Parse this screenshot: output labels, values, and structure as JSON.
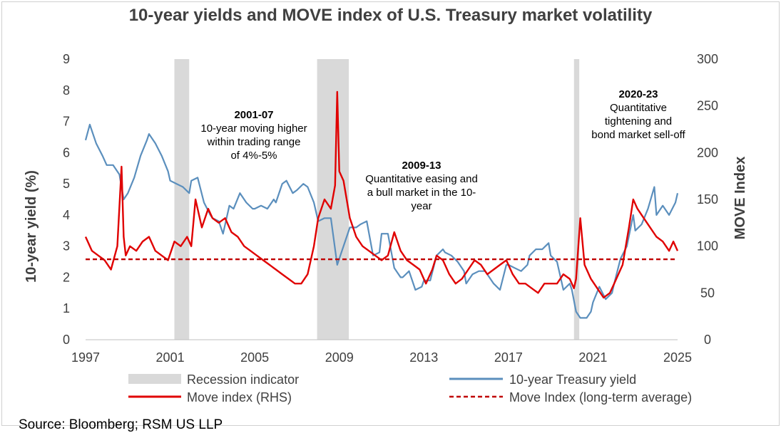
{
  "chart_data": {
    "type": "line",
    "title": "10-year yields and MOVE index of U.S. Treasury market volatility",
    "ylabel_left": "10-year yield (%)",
    "ylabel_right": "MOVE Index",
    "xlim": [
      1997,
      2025
    ],
    "ylim_left": [
      0,
      9
    ],
    "ylim_right": [
      0,
      300
    ],
    "x_ticks": [
      "1997",
      "2001",
      "2005",
      "2009",
      "2013",
      "2017",
      "2021",
      "2025"
    ],
    "y_ticks_left": [
      "0",
      "1",
      "2",
      "3",
      "4",
      "5",
      "6",
      "7",
      "8",
      "9"
    ],
    "y_ticks_right": [
      "0",
      "50",
      "100",
      "150",
      "200",
      "250",
      "300"
    ],
    "recessions": [
      {
        "start": 2001.2,
        "end": 2001.9
      },
      {
        "start": 2007.95,
        "end": 2009.45
      },
      {
        "start": 2020.1,
        "end": 2020.35
      }
    ],
    "series": [
      {
        "name": "10-year Treasury yield",
        "axis": "left",
        "color": "#5b8fbd",
        "x": [
          1997.0,
          1997.2,
          1997.5,
          1997.8,
          1998.0,
          1998.3,
          1998.6,
          1998.8,
          1999.0,
          1999.3,
          1999.6,
          1999.9,
          2000.0,
          2000.3,
          2000.6,
          2000.9,
          2001.0,
          2001.3,
          2001.6,
          2001.9,
          2002.0,
          2002.3,
          2002.6,
          2002.9,
          2003.0,
          2003.3,
          2003.5,
          2003.8,
          2004.0,
          2004.3,
          2004.6,
          2004.9,
          2005.0,
          2005.3,
          2005.6,
          2005.9,
          2006.0,
          2006.3,
          2006.5,
          2006.8,
          2007.0,
          2007.3,
          2007.5,
          2007.8,
          2008.0,
          2008.3,
          2008.6,
          2008.9,
          2009.0,
          2009.3,
          2009.5,
          2009.8,
          2010.0,
          2010.3,
          2010.6,
          2010.9,
          2011.0,
          2011.3,
          2011.6,
          2011.9,
          2012.0,
          2012.3,
          2012.6,
          2012.9,
          2013.0,
          2013.3,
          2013.6,
          2013.9,
          2014.0,
          2014.3,
          2014.6,
          2014.9,
          2015.0,
          2015.3,
          2015.6,
          2015.9,
          2016.0,
          2016.3,
          2016.6,
          2016.9,
          2017.0,
          2017.3,
          2017.6,
          2017.9,
          2018.0,
          2018.3,
          2018.6,
          2018.9,
          2019.0,
          2019.3,
          2019.6,
          2019.9,
          2020.0,
          2020.2,
          2020.4,
          2020.7,
          2020.9,
          2021.0,
          2021.3,
          2021.6,
          2021.9,
          2022.0,
          2022.3,
          2022.6,
          2022.9,
          2023.0,
          2023.3,
          2023.6,
          2023.9,
          2024.0,
          2024.3,
          2024.6,
          2024.9,
          2025.0
        ],
        "values": [
          6.4,
          6.9,
          6.3,
          5.9,
          5.6,
          5.6,
          5.3,
          4.5,
          4.7,
          5.2,
          5.9,
          6.4,
          6.6,
          6.3,
          5.9,
          5.4,
          5.1,
          5.0,
          4.9,
          4.7,
          5.1,
          5.2,
          4.4,
          4.0,
          3.9,
          3.8,
          3.4,
          4.3,
          4.2,
          4.7,
          4.4,
          4.2,
          4.2,
          4.3,
          4.2,
          4.5,
          4.4,
          5.0,
          5.1,
          4.7,
          4.8,
          5.0,
          4.9,
          4.4,
          3.8,
          3.9,
          3.9,
          2.4,
          2.6,
          3.2,
          3.6,
          3.6,
          3.7,
          3.8,
          2.7,
          2.8,
          3.4,
          3.4,
          2.3,
          2.0,
          2.0,
          2.2,
          1.6,
          1.7,
          1.9,
          1.9,
          2.7,
          2.9,
          2.8,
          2.7,
          2.5,
          2.2,
          1.8,
          2.1,
          2.2,
          2.2,
          2.1,
          1.8,
          1.6,
          2.4,
          2.4,
          2.3,
          2.2,
          2.4,
          2.7,
          2.9,
          2.9,
          3.1,
          2.7,
          2.5,
          1.6,
          1.8,
          1.6,
          0.9,
          0.7,
          0.7,
          0.9,
          1.2,
          1.7,
          1.3,
          1.5,
          1.8,
          2.6,
          3.0,
          4.0,
          3.5,
          3.7,
          4.2,
          4.9,
          4.0,
          4.3,
          4.0,
          4.4,
          4.7
        ]
      },
      {
        "name": "Move index (RHS)",
        "axis": "right",
        "color": "#e00000",
        "x": [
          1997.0,
          1997.3,
          1997.6,
          1997.9,
          1998.2,
          1998.5,
          1998.7,
          1998.8,
          1998.9,
          1999.1,
          1999.4,
          1999.7,
          2000.0,
          2000.3,
          2000.6,
          2000.9,
          2001.2,
          2001.5,
          2001.8,
          2002.0,
          2002.2,
          2002.5,
          2002.8,
          2003.0,
          2003.3,
          2003.6,
          2003.9,
          2004.2,
          2004.5,
          2004.8,
          2005.1,
          2005.4,
          2005.7,
          2006.0,
          2006.3,
          2006.6,
          2006.9,
          2007.2,
          2007.5,
          2007.8,
          2008.0,
          2008.3,
          2008.6,
          2008.8,
          2008.9,
          2009.0,
          2009.2,
          2009.5,
          2009.8,
          2010.1,
          2010.4,
          2010.7,
          2011.0,
          2011.3,
          2011.6,
          2011.9,
          2012.2,
          2012.5,
          2012.8,
          2013.1,
          2013.4,
          2013.6,
          2013.9,
          2014.2,
          2014.5,
          2014.8,
          2015.1,
          2015.4,
          2015.7,
          2016.0,
          2016.3,
          2016.6,
          2016.9,
          2017.2,
          2017.5,
          2017.8,
          2018.1,
          2018.4,
          2018.7,
          2019.0,
          2019.3,
          2019.6,
          2019.9,
          2020.1,
          2020.2,
          2020.4,
          2020.6,
          2020.9,
          2021.2,
          2021.5,
          2021.8,
          2022.0,
          2022.2,
          2022.4,
          2022.7,
          2022.9,
          2023.1,
          2023.4,
          2023.7,
          2024.0,
          2024.3,
          2024.6,
          2024.8,
          2025.0
        ],
        "values": [
          110,
          95,
          90,
          85,
          75,
          100,
          185,
          110,
          90,
          100,
          95,
          105,
          110,
          95,
          90,
          85,
          105,
          100,
          110,
          100,
          150,
          120,
          140,
          130,
          125,
          130,
          115,
          110,
          100,
          95,
          90,
          85,
          80,
          75,
          70,
          65,
          60,
          60,
          70,
          100,
          130,
          150,
          140,
          165,
          265,
          180,
          170,
          130,
          110,
          100,
          95,
          90,
          85,
          90,
          115,
          95,
          85,
          80,
          75,
          60,
          75,
          90,
          85,
          70,
          60,
          65,
          75,
          85,
          80,
          70,
          75,
          80,
          85,
          70,
          60,
          60,
          55,
          50,
          60,
          60,
          60,
          70,
          65,
          55,
          65,
          130,
          80,
          65,
          55,
          45,
          50,
          60,
          70,
          80,
          120,
          150,
          140,
          130,
          120,
          110,
          105,
          95,
          105,
          95
        ]
      },
      {
        "name": "Move Index (long-term average)",
        "axis": "right",
        "color": "#c00000",
        "x": [
          1997,
          2025
        ],
        "values": [
          86,
          86
        ]
      }
    ],
    "annotations": [
      {
        "head": "2001-07",
        "lines": [
          "10-year moving higher",
          "within trading range",
          "of 4%-5%"
        ]
      },
      {
        "head": "2009-13",
        "lines": [
          "Quantitative easing and",
          "a bull market in the 10-",
          "year"
        ]
      },
      {
        "head": "2020-23",
        "lines": [
          "Quantitative",
          "tightening and",
          "bond market sell-off"
        ]
      }
    ],
    "legend": {
      "position": "bottom",
      "items": [
        "Recession indicator",
        "10-year Treasury yield",
        "Move index (RHS)",
        "Move Index (long-term average)"
      ]
    }
  },
  "source": "Source: Bloomberg; RSM US LLP"
}
